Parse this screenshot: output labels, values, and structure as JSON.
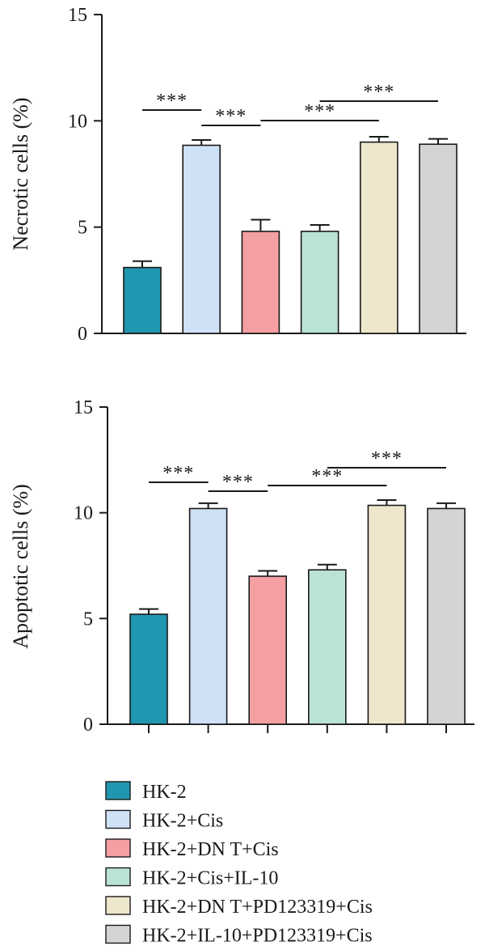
{
  "chart_data": [
    {
      "type": "bar",
      "title": "",
      "xlabel": "",
      "ylabel": "Necrotic cells (%)",
      "ylim": [
        0,
        15
      ],
      "yticks": [
        0,
        5,
        10,
        15
      ],
      "categories": [
        "HK-2",
        "HK-2+Cis",
        "HK-2+DN T+Cis",
        "HK-2+Cis+IL-10",
        "HK-2+DN T+PD123319+Cis",
        "HK-2+IL-10+PD123319+Cis"
      ],
      "values": [
        3.1,
        8.85,
        4.8,
        4.8,
        9.0,
        8.9
      ],
      "errors": [
        0.3,
        0.25,
        0.55,
        0.3,
        0.25,
        0.25
      ],
      "significance": [
        {
          "from": 0,
          "to": 1,
          "label": "***"
        },
        {
          "from": 1,
          "to": 2,
          "label": "***"
        },
        {
          "from": 2,
          "to": 4,
          "label": "***"
        },
        {
          "from": 3,
          "to": 5,
          "label": "***"
        }
      ]
    },
    {
      "type": "bar",
      "title": "",
      "xlabel": "",
      "ylabel": "Apoptotic cells (%)",
      "ylim": [
        0,
        15
      ],
      "yticks": [
        0,
        5,
        10,
        15
      ],
      "categories": [
        "HK-2",
        "HK-2+Cis",
        "HK-2+DN T+Cis",
        "HK-2+Cis+IL-10",
        "HK-2+DN T+PD123319+Cis",
        "HK-2+IL-10+PD123319+Cis"
      ],
      "values": [
        5.2,
        10.2,
        7.0,
        7.3,
        10.35,
        10.2
      ],
      "errors": [
        0.25,
        0.25,
        0.25,
        0.25,
        0.25,
        0.25
      ],
      "significance": [
        {
          "from": 0,
          "to": 1,
          "label": "***"
        },
        {
          "from": 1,
          "to": 2,
          "label": "***"
        },
        {
          "from": 2,
          "to": 4,
          "label": "***"
        },
        {
          "from": 3,
          "to": 5,
          "label": "***"
        }
      ]
    }
  ],
  "legend": [
    {
      "label": "HK-2",
      "color": "#2196b0"
    },
    {
      "label": "HK-2+Cis",
      "color": "#cfe1f4"
    },
    {
      "label": "HK-2+DN T+Cis",
      "color": "#f49fa2"
    },
    {
      "label": "HK-2+Cis+IL-10",
      "color": "#b9e3d5"
    },
    {
      "label": "HK-2+DN T+PD123319+Cis",
      "color": "#eee7cc"
    },
    {
      "label": "HK-2+IL-10+PD123319+Cis",
      "color": "#d4d4d4"
    }
  ]
}
